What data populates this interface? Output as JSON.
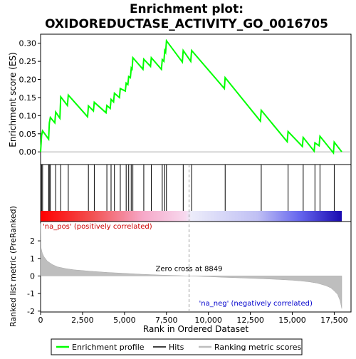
{
  "chart_data": {
    "type": "line",
    "title_line1": "Enrichment plot:",
    "title_line2": "OXIDOREDUCTASE_ACTIVITY_GO_0016705",
    "top_panel": {
      "ylabel": "Enrichment score (ES)",
      "ylim": [
        -0.035,
        0.325
      ],
      "yticks": [
        0.0,
        0.05,
        0.1,
        0.15,
        0.2,
        0.25,
        0.3
      ],
      "ytick_labels": [
        "0.00",
        "0.05",
        "0.10",
        "0.15",
        "0.20",
        "0.25",
        "0.30"
      ],
      "line_color": "#00ff00",
      "es_profile": {
        "x": [
          0,
          60,
          120,
          480,
          520,
          580,
          850,
          900,
          1150,
          1200,
          1600,
          1650,
          2800,
          2850,
          3150,
          3200,
          3900,
          3950,
          4150,
          4200,
          4350,
          4400,
          4700,
          4750,
          5050,
          5100,
          5200,
          5250,
          5350,
          5400,
          5450,
          5500,
          6100,
          6150,
          6550,
          6600,
          7200,
          7250,
          7350,
          7400,
          7450,
          7500,
          8450,
          8500,
          8950,
          9000,
          10950,
          11000,
          13100,
          13150,
          14700,
          14750,
          15600,
          15650,
          16300,
          16350,
          16600,
          16650,
          17450,
          17500,
          17950
        ],
        "y": [
          0.0,
          0.045,
          0.058,
          0.035,
          0.08,
          0.095,
          0.08,
          0.11,
          0.093,
          0.152,
          0.128,
          0.157,
          0.097,
          0.127,
          0.113,
          0.137,
          0.108,
          0.128,
          0.12,
          0.145,
          0.138,
          0.162,
          0.15,
          0.175,
          0.168,
          0.19,
          0.186,
          0.208,
          0.205,
          0.23,
          0.225,
          0.26,
          0.228,
          0.256,
          0.236,
          0.26,
          0.228,
          0.255,
          0.25,
          0.28,
          0.275,
          0.307,
          0.248,
          0.28,
          0.25,
          0.28,
          0.175,
          0.205,
          0.085,
          0.115,
          0.028,
          0.056,
          0.015,
          0.04,
          0.002,
          0.025,
          0.017,
          0.043,
          -0.003,
          0.027,
          0.0
        ]
      }
    },
    "hits": [
      60,
      120,
      480,
      520,
      580,
      900,
      1200,
      1650,
      2850,
      3200,
      3950,
      4200,
      4400,
      4750,
      5100,
      5250,
      5400,
      5500,
      6150,
      6600,
      7250,
      7400,
      7500,
      8500,
      9000,
      11000,
      13150,
      14750,
      15650,
      16350,
      16650,
      17500
    ],
    "colorbar": {
      "gradient_stops": [
        {
          "pos": 0.0,
          "color": "#ff0000"
        },
        {
          "pos": 0.17,
          "color": "#f25050"
        },
        {
          "pos": 0.34,
          "color": "#f6a8c8"
        },
        {
          "pos": 0.48,
          "color": "#f7d8ee"
        },
        {
          "pos": 0.5,
          "color": "#ececfa"
        },
        {
          "pos": 0.72,
          "color": "#c0c0f4"
        },
        {
          "pos": 0.86,
          "color": "#6666ee"
        },
        {
          "pos": 1.0,
          "color": "#1a0ab0"
        }
      ]
    },
    "bottom_panel": {
      "ylabel": "Ranked list metric (PreRanked)",
      "xlabel": "Rank in Ordered Dataset",
      "ylim": [
        -2.05,
        3.1
      ],
      "yticks": [
        -2,
        -1,
        0,
        1,
        2
      ],
      "ytick_labels": [
        "-2",
        "-1",
        "0",
        "1",
        "2"
      ],
      "metric_curve": {
        "x": [
          0,
          30,
          100,
          200,
          400,
          700,
          1000,
          1500,
          2000,
          3000,
          4000,
          5000,
          6000,
          7000,
          8000,
          8849,
          10000,
          11000,
          12000,
          13000,
          14000,
          15000,
          15500,
          16000,
          16500,
          17000,
          17300,
          17500,
          17700,
          17850,
          17950
        ],
        "y": [
          3.0,
          1.6,
          1.3,
          1.1,
          0.85,
          0.65,
          0.52,
          0.42,
          0.35,
          0.27,
          0.2,
          0.15,
          0.1,
          0.06,
          0.03,
          0.0,
          -0.04,
          -0.08,
          -0.11,
          -0.15,
          -0.19,
          -0.24,
          -0.28,
          -0.33,
          -0.41,
          -0.55,
          -0.68,
          -0.85,
          -1.05,
          -1.4,
          -1.85
        ]
      },
      "zero_cross_label": "Zero cross at 8849",
      "zero_cross_rank": 8849,
      "pos_label": "'na_pos' (positively correlated)",
      "neg_label": "'na_neg' (negatively correlated)"
    },
    "x_axis": {
      "xlim": [
        0,
        18500
      ],
      "xticks": [
        0,
        2500,
        5000,
        7500,
        10000,
        12500,
        15000,
        17500
      ],
      "xtick_labels": [
        "0",
        "2,500",
        "5,000",
        "7,500",
        "10,000",
        "12,500",
        "15,000",
        "17,500"
      ],
      "dataset_end": 17950
    },
    "legend": {
      "items": [
        {
          "label": "Enrichment profile",
          "color": "#00ff00"
        },
        {
          "label": "Hits",
          "color": "#000000"
        },
        {
          "label": "Ranking metric scores",
          "color": "#bebebe"
        }
      ]
    }
  }
}
